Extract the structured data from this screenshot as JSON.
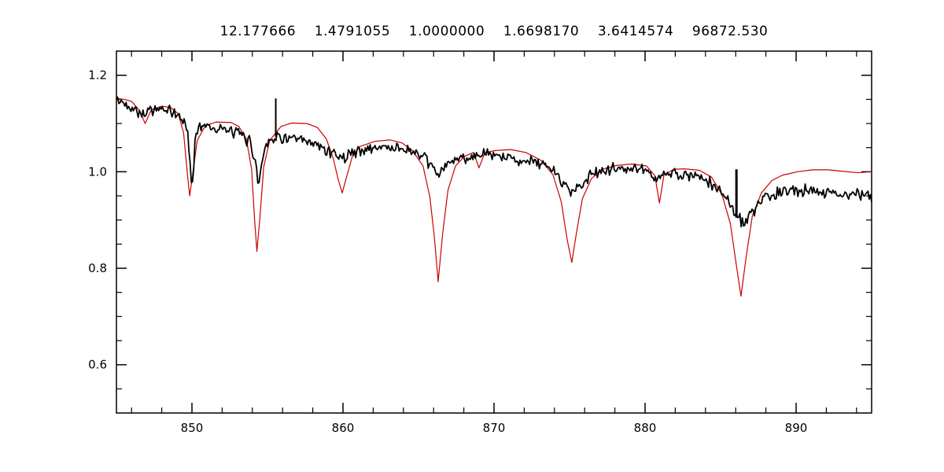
{
  "header": {
    "title": "12.177666    1.4791055    1.0000000    1.6698170    3.6414574    96872.530",
    "title_values": [
      "12.177666",
      "1.4791055",
      "1.0000000",
      "1.6698170",
      "3.6414574",
      "96872.530"
    ]
  },
  "colors": {
    "background": "#ffffff",
    "axis": "#000000",
    "observed": "#000000",
    "model": "#cc0000"
  },
  "chart_data": {
    "type": "line",
    "title": "12.177666    1.4791055    1.0000000    1.6698170    3.6414574    96872.530",
    "xlabel": "",
    "ylabel": "",
    "xlim": [
      845,
      895
    ],
    "ylim": [
      0.5,
      1.25
    ],
    "grid": false,
    "legend": "none",
    "x_major_ticks": [
      {
        "v": 850,
        "label": "850"
      },
      {
        "v": 860,
        "label": "860"
      },
      {
        "v": 870,
        "label": "870"
      },
      {
        "v": 880,
        "label": "880"
      },
      {
        "v": 890,
        "label": "890"
      }
    ],
    "x_minor_step": 2,
    "y_major_ticks": [
      {
        "v": 0.6,
        "label": "0.6"
      },
      {
        "v": 0.8,
        "label": "0.8"
      },
      {
        "v": 1.0,
        "label": "1.0"
      },
      {
        "v": 1.2,
        "label": "1.2"
      }
    ],
    "y_minor_step": 0.05,
    "series": [
      {
        "name": "observed-spectrum",
        "color": "#000000",
        "width": 1.8,
        "noise_amplitude": 0.0075,
        "points": [
          [
            845.0,
            1.148
          ],
          [
            845.6,
            1.14
          ],
          [
            846.2,
            1.132
          ],
          [
            846.8,
            1.118
          ],
          [
            847.2,
            1.13
          ],
          [
            848.0,
            1.128
          ],
          [
            848.6,
            1.124
          ],
          [
            849.3,
            1.112
          ],
          [
            849.7,
            1.09
          ],
          [
            850.0,
            0.958
          ],
          [
            850.25,
            1.085
          ],
          [
            850.7,
            1.098
          ],
          [
            851.5,
            1.092
          ],
          [
            852.3,
            1.085
          ],
          [
            853.2,
            1.078
          ],
          [
            853.9,
            1.06
          ],
          [
            854.2,
            1.02
          ],
          [
            854.4,
            0.968
          ],
          [
            854.65,
            1.03
          ],
          [
            855.0,
            1.065
          ],
          [
            855.8,
            1.072
          ],
          [
            856.6,
            1.068
          ],
          [
            857.4,
            1.062
          ],
          [
            858.2,
            1.055
          ],
          [
            859.0,
            1.045
          ],
          [
            859.6,
            1.035
          ],
          [
            860.0,
            1.028
          ],
          [
            860.4,
            1.038
          ],
          [
            861.0,
            1.042
          ],
          [
            861.8,
            1.048
          ],
          [
            862.6,
            1.052
          ],
          [
            863.4,
            1.05
          ],
          [
            864.2,
            1.046
          ],
          [
            865.0,
            1.035
          ],
          [
            865.6,
            1.02
          ],
          [
            866.1,
            1.002
          ],
          [
            866.45,
            0.997
          ],
          [
            867.0,
            1.018
          ],
          [
            867.8,
            1.028
          ],
          [
            868.6,
            1.032
          ],
          [
            869.4,
            1.035
          ],
          [
            870.2,
            1.032
          ],
          [
            871.0,
            1.028
          ],
          [
            872.0,
            1.024
          ],
          [
            873.0,
            1.018
          ],
          [
            873.8,
            1.005
          ],
          [
            874.5,
            0.982
          ],
          [
            875.1,
            0.958
          ],
          [
            875.7,
            0.972
          ],
          [
            876.4,
            0.992
          ],
          [
            877.2,
            1.002
          ],
          [
            878.0,
            1.006
          ],
          [
            879.0,
            1.006
          ],
          [
            880.0,
            1.002
          ],
          [
            880.9,
            0.988
          ],
          [
            881.6,
            0.996
          ],
          [
            882.4,
            0.994
          ],
          [
            883.2,
            0.99
          ],
          [
            884.0,
            0.982
          ],
          [
            884.8,
            0.965
          ],
          [
            885.5,
            0.942
          ],
          [
            886.1,
            0.908
          ],
          [
            886.5,
            0.893
          ],
          [
            887.0,
            0.91
          ],
          [
            887.7,
            0.938
          ],
          [
            888.4,
            0.952
          ],
          [
            889.2,
            0.958
          ],
          [
            890.0,
            0.962
          ],
          [
            891.0,
            0.962
          ],
          [
            892.0,
            0.958
          ],
          [
            893.0,
            0.955
          ],
          [
            894.0,
            0.952
          ],
          [
            895.0,
            0.95
          ]
        ],
        "spikes": [
          {
            "x": 855.55,
            "y1": 1.072,
            "y2": 1.152,
            "width": 2.0
          },
          {
            "x": 886.05,
            "y1": 0.905,
            "y2": 1.005,
            "width": 3.0
          }
        ]
      },
      {
        "name": "model-spectrum",
        "color": "#cc0000",
        "width": 1.2,
        "noise_amplitude": 0,
        "points": [
          [
            845.0,
            1.152
          ],
          [
            845.5,
            1.15
          ],
          [
            846.0,
            1.146
          ],
          [
            846.5,
            1.128
          ],
          [
            846.9,
            1.1
          ],
          [
            847.3,
            1.128
          ],
          [
            848.0,
            1.136
          ],
          [
            848.6,
            1.133
          ],
          [
            849.1,
            1.12
          ],
          [
            849.45,
            1.08
          ],
          [
            849.7,
            0.995
          ],
          [
            849.85,
            0.95
          ],
          [
            850.05,
            0.995
          ],
          [
            850.35,
            1.065
          ],
          [
            850.9,
            1.096
          ],
          [
            851.6,
            1.103
          ],
          [
            852.6,
            1.102
          ],
          [
            853.1,
            1.094
          ],
          [
            853.6,
            1.068
          ],
          [
            853.95,
            1.005
          ],
          [
            854.15,
            0.9
          ],
          [
            854.3,
            0.835
          ],
          [
            854.5,
            0.905
          ],
          [
            854.75,
            1.01
          ],
          [
            855.15,
            1.065
          ],
          [
            855.9,
            1.094
          ],
          [
            856.6,
            1.101
          ],
          [
            857.6,
            1.1
          ],
          [
            858.3,
            1.092
          ],
          [
            858.9,
            1.068
          ],
          [
            859.35,
            1.028
          ],
          [
            859.7,
            0.982
          ],
          [
            859.95,
            0.956
          ],
          [
            860.2,
            0.985
          ],
          [
            860.6,
            1.03
          ],
          [
            861.1,
            1.052
          ],
          [
            862.1,
            1.063
          ],
          [
            863.1,
            1.066
          ],
          [
            863.9,
            1.06
          ],
          [
            864.6,
            1.044
          ],
          [
            865.3,
            1.012
          ],
          [
            865.75,
            0.948
          ],
          [
            866.05,
            0.865
          ],
          [
            866.3,
            0.772
          ],
          [
            866.6,
            0.872
          ],
          [
            866.95,
            0.962
          ],
          [
            867.45,
            1.012
          ],
          [
            868.05,
            1.032
          ],
          [
            868.65,
            1.04
          ],
          [
            869.0,
            1.008
          ],
          [
            869.4,
            1.04
          ],
          [
            870.1,
            1.044
          ],
          [
            871.1,
            1.046
          ],
          [
            872.1,
            1.04
          ],
          [
            873.1,
            1.024
          ],
          [
            873.9,
            0.994
          ],
          [
            874.45,
            0.938
          ],
          [
            874.85,
            0.858
          ],
          [
            875.15,
            0.812
          ],
          [
            875.45,
            0.872
          ],
          [
            875.85,
            0.944
          ],
          [
            876.45,
            0.986
          ],
          [
            877.25,
            1.006
          ],
          [
            878.1,
            1.013
          ],
          [
            879.1,
            1.016
          ],
          [
            880.1,
            1.012
          ],
          [
            880.65,
            0.992
          ],
          [
            880.95,
            0.935
          ],
          [
            881.25,
            0.993
          ],
          [
            881.9,
            1.005
          ],
          [
            882.6,
            1.006
          ],
          [
            883.6,
            1.003
          ],
          [
            884.4,
            0.989
          ],
          [
            885.1,
            0.952
          ],
          [
            885.65,
            0.892
          ],
          [
            886.05,
            0.805
          ],
          [
            886.35,
            0.742
          ],
          [
            886.7,
            0.825
          ],
          [
            887.1,
            0.908
          ],
          [
            887.7,
            0.956
          ],
          [
            888.4,
            0.982
          ],
          [
            889.1,
            0.993
          ],
          [
            890.1,
            1.0
          ],
          [
            891.1,
            1.004
          ],
          [
            892.1,
            1.004
          ],
          [
            893.1,
            1.001
          ],
          [
            894.1,
            0.998
          ],
          [
            895.0,
            1.0
          ]
        ],
        "spikes": []
      }
    ]
  }
}
